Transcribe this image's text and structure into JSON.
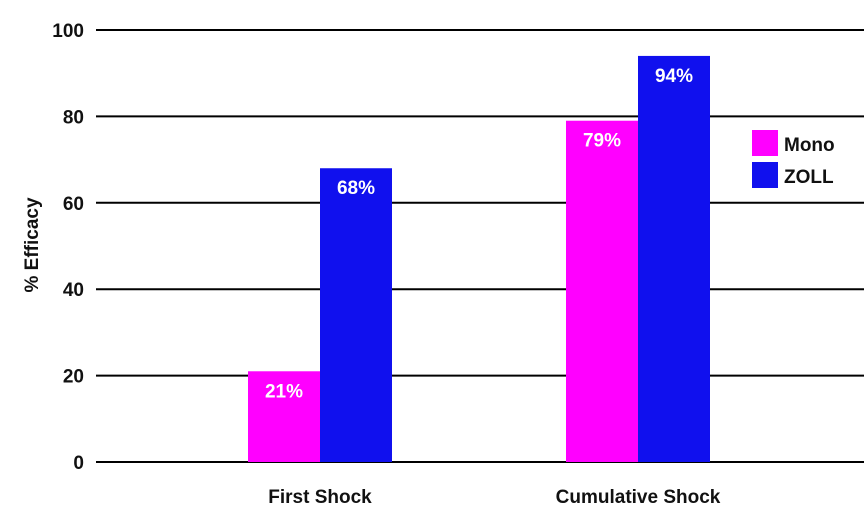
{
  "chart_data": {
    "type": "bar",
    "title": "",
    "xlabel": "",
    "ylabel": "% Efficacy",
    "ylim": [
      0,
      100
    ],
    "yticks": [
      0,
      20,
      40,
      60,
      80,
      100
    ],
    "grid": true,
    "legend_position": "right",
    "categories": [
      "First Shock",
      "Cumulative Shock"
    ],
    "series": [
      {
        "name": "Mono",
        "color": "#ff00ff",
        "values": [
          21,
          79
        ],
        "labels": [
          "21%",
          "79%"
        ]
      },
      {
        "name": "ZOLL",
        "color": "#1010ee",
        "values": [
          68,
          94
        ],
        "labels": [
          "68%",
          "94%"
        ]
      }
    ]
  }
}
